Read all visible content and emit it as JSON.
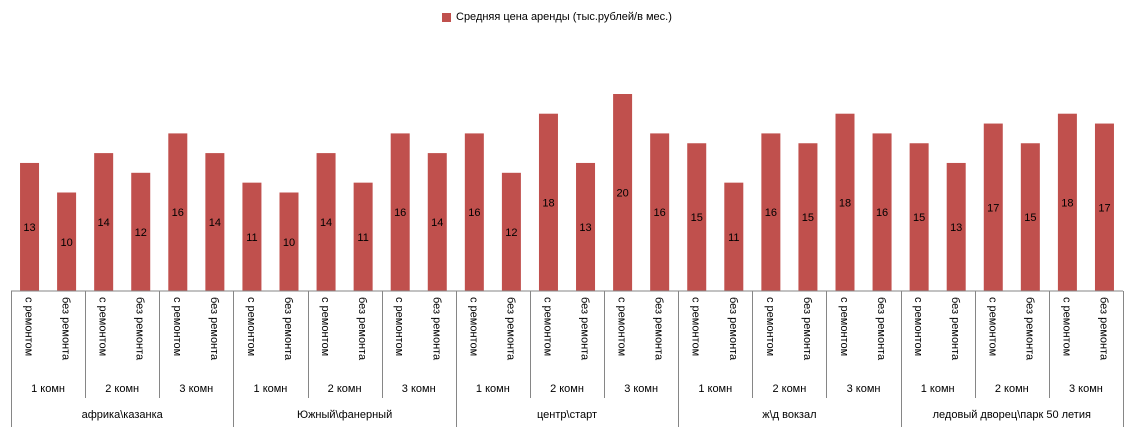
{
  "chart_data": {
    "type": "bar",
    "legend": {
      "label": "Средняя  цена аренды (тыс.рублей/в мес.)",
      "position": "top"
    },
    "colors": {
      "bar": "#c0504d",
      "axis": "#868686",
      "text": "#000000"
    },
    "grid": false,
    "show_value_labels": true,
    "series": [
      {
        "name": "Средняя  цена аренды (тыс.рублей/в мес.)",
        "values": [
          13,
          10,
          14,
          12,
          16,
          14,
          11,
          10,
          14,
          11,
          16,
          14,
          16,
          12,
          18,
          13,
          20,
          16,
          15,
          11,
          16,
          15,
          18,
          16,
          15,
          13,
          17,
          15,
          18,
          17
        ]
      }
    ],
    "categories": [
      "с ремонтом",
      "без ремонта",
      "с ремонтом",
      "без ремонта",
      "с ремонтом",
      "без ремонта",
      "с ремонтом",
      "без ремонта",
      "с ремонтом",
      "без ремонта",
      "с ремонтом",
      "без ремонта",
      "с ремонтом",
      "без ремонта",
      "с ремонтом",
      "без ремонта",
      "с ремонтом",
      "без ремонта",
      "с ремонтом",
      "без ремонта",
      "с ремонтом",
      "без ремонта",
      "с ремонтом",
      "без ремонта",
      "с ремонтом",
      "без ремонта",
      "с ремонтом",
      "без ремонта",
      "с ремонтом",
      "без ремонта"
    ],
    "rooms": [
      "1 комн",
      "2 комн",
      "3  комн"
    ],
    "districts": [
      "африка\\казанка",
      "Южный\\фанерный",
      "центр\\старт",
      "ж\\д вокзал",
      "ледовый дворец\\парк  50 летия"
    ],
    "ylim": [
      0,
      20
    ]
  }
}
